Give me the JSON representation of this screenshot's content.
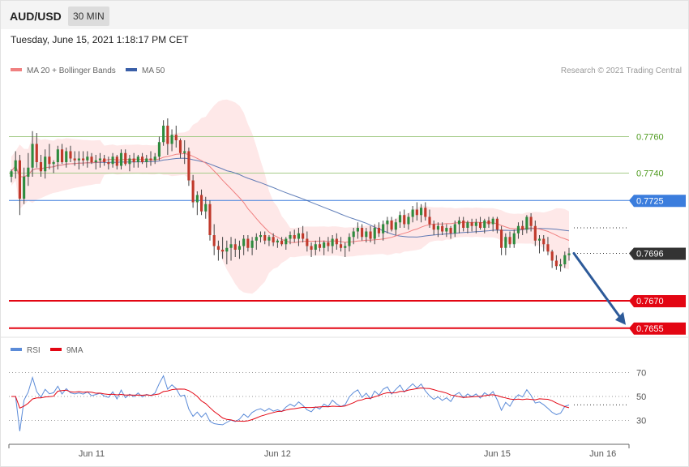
{
  "header": {
    "symbol": "AUD/USD",
    "timeframe": "30 MIN"
  },
  "timestamp": "Tuesday, June 15, 2021 1:18:17 PM CET",
  "legend": {
    "ma20": "MA 20 + Bollinger Bands",
    "ma50": "MA 50",
    "credit": "Research © 2021 Trading Central",
    "rsi": "RSI",
    "ma9": "9MA"
  },
  "colors": {
    "bull": "#2e8b3e",
    "bear": "#c0392b",
    "wick": "#444444",
    "ma20": "#f08080",
    "band": "#fde0e0",
    "ma50": "#3a5fa8",
    "support": "#e30613",
    "pivot": "#3b7ddd",
    "resistance_line": "#a6cc8a",
    "resistance_text": "#4e9a1e",
    "current": "#333333",
    "arrow": "#2d5a99",
    "rsi": "#5b8bd8",
    "rsi_ma": "#e30613"
  },
  "chart_data": [
    {
      "type": "candlestick",
      "ylim": [
        0.765,
        0.779
      ],
      "x_ticks": [
        {
          "label": "Jun 11",
          "index": 19
        },
        {
          "label": "Jun 12",
          "index": 63
        },
        {
          "label": "Jun 15",
          "index": 115
        },
        {
          "label": "Jun 16",
          "index": 140
        }
      ],
      "levels": [
        {
          "value": 0.776,
          "label": "0.7760",
          "kind": "resistance"
        },
        {
          "value": 0.774,
          "label": "0.7740",
          "kind": "resistance"
        },
        {
          "value": 0.7725,
          "label": "0.7725",
          "kind": "pivot"
        },
        {
          "value": 0.7696,
          "label": "0.7696",
          "kind": "current"
        },
        {
          "value": 0.767,
          "label": "0.7670",
          "kind": "support"
        },
        {
          "value": 0.7655,
          "label": "0.7655",
          "kind": "support"
        }
      ],
      "forecast": {
        "from": 0.7696,
        "to": 0.7655
      },
      "candles": [
        [
          0.7738,
          0.7742,
          0.7735,
          0.7741
        ],
        [
          0.7741,
          0.7752,
          0.7737,
          0.7747
        ],
        [
          0.7747,
          0.775,
          0.7717,
          0.7726
        ],
        [
          0.7726,
          0.7743,
          0.7723,
          0.7738
        ],
        [
          0.7738,
          0.7751,
          0.7733,
          0.7743
        ],
        [
          0.7743,
          0.7763,
          0.7738,
          0.7756
        ],
        [
          0.7756,
          0.7762,
          0.7743,
          0.7746
        ],
        [
          0.7746,
          0.775,
          0.7738,
          0.7741
        ],
        [
          0.7741,
          0.7753,
          0.7737,
          0.7749
        ],
        [
          0.7749,
          0.7756,
          0.7742,
          0.7745
        ],
        [
          0.7745,
          0.7747,
          0.774,
          0.7746
        ],
        [
          0.7746,
          0.7755,
          0.7742,
          0.7753
        ],
        [
          0.7753,
          0.7756,
          0.7745,
          0.7746
        ],
        [
          0.7746,
          0.7754,
          0.7743,
          0.7752
        ],
        [
          0.7752,
          0.7755,
          0.7746,
          0.7748
        ],
        [
          0.7748,
          0.7752,
          0.7744,
          0.7747
        ],
        [
          0.7747,
          0.7752,
          0.7742,
          0.7748
        ],
        [
          0.7748,
          0.7752,
          0.7744,
          0.7747
        ],
        [
          0.7747,
          0.7752,
          0.7743,
          0.7749
        ],
        [
          0.7749,
          0.7751,
          0.7745,
          0.7746
        ],
        [
          0.7746,
          0.775,
          0.7742,
          0.7747
        ],
        [
          0.7747,
          0.7751,
          0.7743,
          0.7748
        ],
        [
          0.7748,
          0.775,
          0.7744,
          0.7746
        ],
        [
          0.7746,
          0.7749,
          0.7742,
          0.7745
        ],
        [
          0.7745,
          0.7751,
          0.7743,
          0.7749
        ],
        [
          0.7749,
          0.775,
          0.7742,
          0.7744
        ],
        [
          0.7744,
          0.7753,
          0.7742,
          0.7751
        ],
        [
          0.7751,
          0.7753,
          0.7744,
          0.7745
        ],
        [
          0.7745,
          0.775,
          0.7741,
          0.7748
        ],
        [
          0.7748,
          0.7751,
          0.7743,
          0.7746
        ],
        [
          0.7746,
          0.775,
          0.7743,
          0.7749
        ],
        [
          0.7749,
          0.7751,
          0.7745,
          0.7746
        ],
        [
          0.7746,
          0.775,
          0.7743,
          0.7748
        ],
        [
          0.7748,
          0.7752,
          0.7744,
          0.7747
        ],
        [
          0.7747,
          0.7751,
          0.7745,
          0.7749
        ],
        [
          0.7749,
          0.776,
          0.7747,
          0.7757
        ],
        [
          0.7757,
          0.7769,
          0.7755,
          0.7766
        ],
        [
          0.7766,
          0.777,
          0.775,
          0.7756
        ],
        [
          0.7756,
          0.7764,
          0.7752,
          0.7761
        ],
        [
          0.7761,
          0.7766,
          0.7754,
          0.7758
        ],
        [
          0.7758,
          0.7759,
          0.7748,
          0.7751
        ],
        [
          0.7751,
          0.7758,
          0.7745,
          0.7752
        ],
        [
          0.7752,
          0.7754,
          0.7733,
          0.7736
        ],
        [
          0.7736,
          0.7739,
          0.7721,
          0.7724
        ],
        [
          0.7724,
          0.773,
          0.7717,
          0.7728
        ],
        [
          0.7728,
          0.7731,
          0.7717,
          0.7719
        ],
        [
          0.7719,
          0.7727,
          0.7715,
          0.7723
        ],
        [
          0.7723,
          0.7725,
          0.7703,
          0.7706
        ],
        [
          0.7706,
          0.7712,
          0.7695,
          0.77
        ],
        [
          0.77,
          0.7703,
          0.7692,
          0.7698
        ],
        [
          0.7698,
          0.7705,
          0.7693,
          0.7697
        ],
        [
          0.7697,
          0.7703,
          0.769,
          0.7699
        ],
        [
          0.7699,
          0.7705,
          0.7692,
          0.7701
        ],
        [
          0.7701,
          0.7704,
          0.7694,
          0.7698
        ],
        [
          0.7698,
          0.7703,
          0.7693,
          0.77
        ],
        [
          0.77,
          0.7706,
          0.7695,
          0.7704
        ],
        [
          0.7704,
          0.7706,
          0.7697,
          0.7699
        ],
        [
          0.7699,
          0.7705,
          0.7695,
          0.7703
        ],
        [
          0.7703,
          0.7707,
          0.7698,
          0.7705
        ],
        [
          0.7705,
          0.7708,
          0.7702,
          0.7706
        ],
        [
          0.7706,
          0.7708,
          0.7701,
          0.7703
        ],
        [
          0.7703,
          0.7706,
          0.77,
          0.7705
        ],
        [
          0.7705,
          0.7707,
          0.77,
          0.7702
        ],
        [
          0.7702,
          0.7704,
          0.7699,
          0.7703
        ],
        [
          0.7703,
          0.7705,
          0.77,
          0.7701
        ],
        [
          0.7701,
          0.7705,
          0.7698,
          0.7704
        ],
        [
          0.7704,
          0.7708,
          0.7701,
          0.7706
        ],
        [
          0.7706,
          0.7709,
          0.7702,
          0.7704
        ],
        [
          0.7704,
          0.771,
          0.77,
          0.7707
        ],
        [
          0.7707,
          0.7711,
          0.7702,
          0.7704
        ],
        [
          0.7704,
          0.7708,
          0.7697,
          0.77
        ],
        [
          0.77,
          0.7702,
          0.7694,
          0.7698
        ],
        [
          0.7698,
          0.7703,
          0.7695,
          0.7701
        ],
        [
          0.7701,
          0.7705,
          0.7697,
          0.7699
        ],
        [
          0.7699,
          0.7703,
          0.7695,
          0.7702
        ],
        [
          0.7702,
          0.7705,
          0.7697,
          0.77
        ],
        [
          0.77,
          0.7706,
          0.7696,
          0.7704
        ],
        [
          0.7704,
          0.7707,
          0.7698,
          0.7701
        ],
        [
          0.7701,
          0.7705,
          0.7697,
          0.7699
        ],
        [
          0.7699,
          0.7702,
          0.7694,
          0.77
        ],
        [
          0.77,
          0.7707,
          0.7697,
          0.7705
        ],
        [
          0.7705,
          0.771,
          0.7701,
          0.7708
        ],
        [
          0.7708,
          0.7713,
          0.7704,
          0.771
        ],
        [
          0.771,
          0.7712,
          0.7703,
          0.7705
        ],
        [
          0.7705,
          0.771,
          0.7702,
          0.7708
        ],
        [
          0.7708,
          0.7711,
          0.7702,
          0.7704
        ],
        [
          0.7704,
          0.7712,
          0.7701,
          0.771
        ],
        [
          0.771,
          0.7713,
          0.7705,
          0.7707
        ],
        [
          0.7707,
          0.7714,
          0.7703,
          0.7712
        ],
        [
          0.7712,
          0.7716,
          0.7707,
          0.7714
        ],
        [
          0.7714,
          0.7716,
          0.7708,
          0.7709
        ],
        [
          0.7709,
          0.7715,
          0.7706,
          0.7713
        ],
        [
          0.7713,
          0.7719,
          0.771,
          0.7717
        ],
        [
          0.7717,
          0.772,
          0.771,
          0.7712
        ],
        [
          0.7712,
          0.7718,
          0.7709,
          0.7716
        ],
        [
          0.7716,
          0.7722,
          0.7713,
          0.772
        ],
        [
          0.772,
          0.7724,
          0.7714,
          0.7717
        ],
        [
          0.7717,
          0.7723,
          0.7713,
          0.7721
        ],
        [
          0.7721,
          0.7724,
          0.7714,
          0.7716
        ],
        [
          0.7716,
          0.772,
          0.771,
          0.7712
        ],
        [
          0.7712,
          0.7714,
          0.7706,
          0.7709
        ],
        [
          0.7709,
          0.7713,
          0.7705,
          0.7711
        ],
        [
          0.7711,
          0.7713,
          0.7706,
          0.7708
        ],
        [
          0.7708,
          0.7712,
          0.7705,
          0.771
        ],
        [
          0.771,
          0.7711,
          0.7704,
          0.7707
        ],
        [
          0.7707,
          0.7714,
          0.7705,
          0.7712
        ],
        [
          0.7712,
          0.7716,
          0.7707,
          0.7714
        ],
        [
          0.7714,
          0.7716,
          0.7708,
          0.771
        ],
        [
          0.771,
          0.7714,
          0.7707,
          0.7713
        ],
        [
          0.7713,
          0.7715,
          0.7708,
          0.7711
        ],
        [
          0.7711,
          0.7715,
          0.7707,
          0.7713
        ],
        [
          0.7713,
          0.7716,
          0.7709,
          0.771
        ],
        [
          0.771,
          0.7715,
          0.7707,
          0.7714
        ],
        [
          0.7714,
          0.7716,
          0.771,
          0.7712
        ],
        [
          0.7712,
          0.7716,
          0.7708,
          0.7715
        ],
        [
          0.7715,
          0.7716,
          0.7707,
          0.7709
        ],
        [
          0.7709,
          0.7711,
          0.7695,
          0.7699
        ],
        [
          0.7699,
          0.7707,
          0.7695,
          0.7705
        ],
        [
          0.7705,
          0.7708,
          0.7699,
          0.7701
        ],
        [
          0.7701,
          0.7709,
          0.7699,
          0.7707
        ],
        [
          0.7707,
          0.7713,
          0.7704,
          0.7711
        ],
        [
          0.7711,
          0.7714,
          0.7706,
          0.7709
        ],
        [
          0.7709,
          0.7717,
          0.7707,
          0.7716
        ],
        [
          0.7716,
          0.7718,
          0.7708,
          0.7711
        ],
        [
          0.7711,
          0.7714,
          0.77,
          0.7703
        ],
        [
          0.7703,
          0.7706,
          0.7696,
          0.7704
        ],
        [
          0.7704,
          0.7706,
          0.7697,
          0.7701
        ],
        [
          0.7701,
          0.7705,
          0.7695,
          0.7697
        ],
        [
          0.7697,
          0.7698,
          0.7688,
          0.7692
        ],
        [
          0.7692,
          0.7695,
          0.7687,
          0.7689
        ],
        [
          0.7689,
          0.7693,
          0.7686,
          0.769
        ],
        [
          0.769,
          0.7697,
          0.7688,
          0.7695
        ],
        [
          0.7695,
          0.7699,
          0.7692,
          0.7696
        ]
      ]
    },
    {
      "type": "line",
      "name": "RSI",
      "ylim": [
        10,
        90
      ],
      "y_ticks": [
        70,
        50,
        30
      ],
      "current": 43
    }
  ]
}
